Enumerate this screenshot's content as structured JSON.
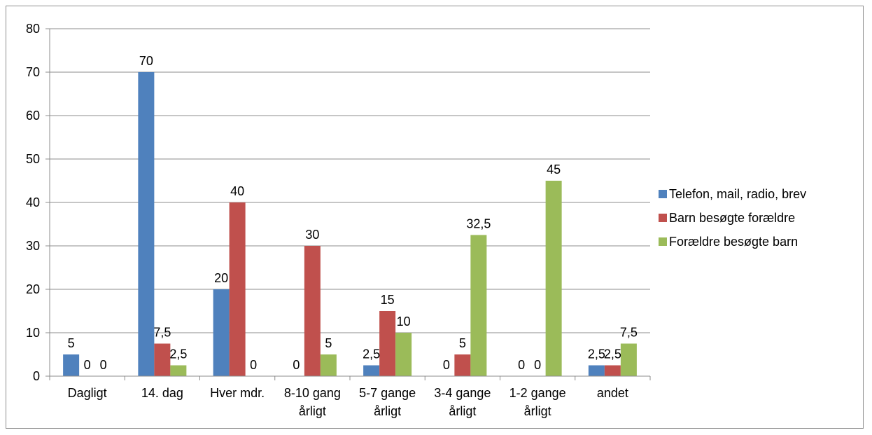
{
  "chart_data": {
    "type": "bar",
    "title": "",
    "xlabel": "",
    "ylabel": "",
    "ylim": [
      0,
      80
    ],
    "y_ticks": [
      "0",
      "10",
      "20",
      "30",
      "40",
      "50",
      "60",
      "70",
      "80"
    ],
    "grid": true,
    "legend_position": "right",
    "categories": [
      [
        "Dagligt"
      ],
      [
        "14. dag"
      ],
      [
        "Hver mdr."
      ],
      [
        "8-10 gang",
        "årligt"
      ],
      [
        "5-7 gange",
        "årligt"
      ],
      [
        "3-4 gange",
        "årligt"
      ],
      [
        "1-2 gange",
        "årligt"
      ],
      [
        "andet"
      ]
    ],
    "series": [
      {
        "name": "Telefon, mail, radio, brev",
        "color": "#4f81bd",
        "values": [
          5,
          70,
          20,
          0,
          2.5,
          0,
          0,
          2.5
        ],
        "labels": [
          "5",
          "70",
          "20",
          "0",
          "2,5",
          "0",
          "0",
          "2,5"
        ]
      },
      {
        "name": "Barn besøgte forældre",
        "color": "#c0504d",
        "values": [
          0,
          7.5,
          40,
          30,
          15,
          5,
          0,
          2.5
        ],
        "labels": [
          "0",
          "7,5",
          "40",
          "30",
          "15",
          "5",
          "0",
          "2,5"
        ]
      },
      {
        "name": "Forældre besøgte barn",
        "color": "#9bbb59",
        "values": [
          0,
          2.5,
          0,
          5,
          10,
          32.5,
          45,
          7.5
        ],
        "labels": [
          "0",
          "2,5",
          "0",
          "5",
          "10",
          "32,5",
          "45",
          "7,5"
        ]
      }
    ]
  }
}
